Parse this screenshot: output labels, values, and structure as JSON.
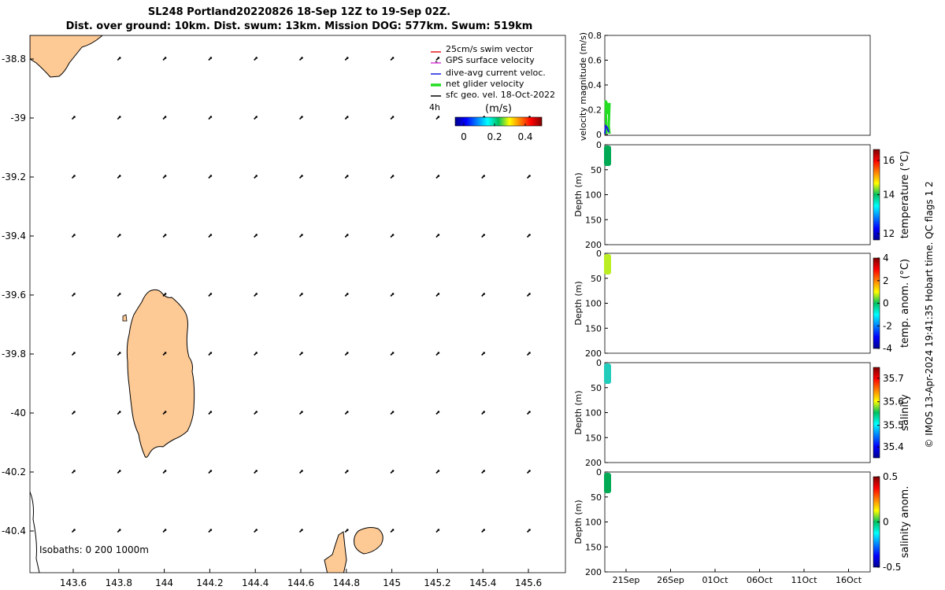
{
  "header": {
    "title_line1": "SL248 Portland20220826 18-Sep 12Z to 19-Sep 02Z.",
    "title_line2": "Dist. over ground: 10km. Dist. swum: 13km. Mission DOG: 577km. Swum: 519km"
  },
  "map": {
    "lon_ticks": [
      "143.6",
      "143.8",
      "144",
      "144.2",
      "144.4",
      "144.6",
      "144.8",
      "145",
      "145.2",
      "145.4",
      "145.6"
    ],
    "lat_ticks": [
      "-38.8",
      "-39",
      "-39.2",
      "-39.4",
      "-39.6",
      "-39.8",
      "-40",
      "-40.2",
      "-40.4"
    ],
    "legend": [
      {
        "label": "25cm/s swim vector",
        "color": "#e41a1c"
      },
      {
        "label": "GPS surface velocity",
        "color": "#e040e0"
      },
      {
        "label": "dive-avg current veloc.",
        "color": "#1a1ae4"
      },
      {
        "label": "net glider velocity",
        "color": "#22dd22"
      },
      {
        "label": "sfc geo. vel. 18-Oct-2022",
        "color": "#000000"
      }
    ],
    "time_label": "4h",
    "colorbar_unit": "(m/s)",
    "colorbar_ticks": [
      "0",
      "0.2",
      "0.4"
    ],
    "isobaths_label": "Isobaths: 0   200  1000m",
    "land_color": "#fdc995"
  },
  "panels": {
    "x_ticks": [
      "21Sep",
      "26Sep",
      "01Oct",
      "06Oct",
      "11Oct",
      "16Oct"
    ],
    "velocity": {
      "ylabel": "velocity magnitude (m/s)",
      "ticks": [
        "0.8",
        "0.6",
        "0.4",
        "0.2",
        "0"
      ]
    },
    "depth_ylabel": "Depth (m)",
    "depth_ticks": [
      "0",
      "50",
      "100",
      "150",
      "200"
    ],
    "temperature": {
      "label": "temperature (°C)",
      "ticks": [
        "16",
        "14",
        "12"
      ]
    },
    "temp_anom": {
      "label": "temp. anom. (°C)",
      "ticks": [
        "4",
        "2",
        "0",
        "-2",
        "-4"
      ]
    },
    "salinity": {
      "label": "salinity",
      "ticks": [
        "35.7",
        "35.6",
        "35.5",
        "35.4"
      ]
    },
    "sal_anom": {
      "label": "salinity anom.",
      "ticks": [
        "0.5",
        "0",
        "-0.5"
      ]
    }
  },
  "footer": {
    "credit": "© IMOS 13-Apr-2024 19:41:35 Hobart time. QC flags 1  2"
  }
}
